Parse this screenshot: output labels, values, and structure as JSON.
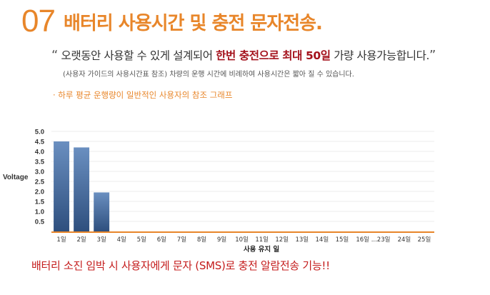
{
  "header": {
    "number": "07",
    "title": "배터리 사용시간 및 충전 문자전송."
  },
  "quote": {
    "open_mark": "“",
    "part1": "오랫동안 사용할 수 있게 설계되어",
    "highlight1": "한번 충전으로 최대 50일",
    "part2": "가량 사용가능합니다.",
    "close_mark": "”"
  },
  "subnote": "(사용자 가이드의 사용시간표 참조) 차량의 운행 시간에 비례하여 사용시간은 짧아 질 수 있습니다.",
  "graph_note": "· 하루 평균 운행량이 일반적인 사용자의 참조 그래프",
  "chart_data": {
    "type": "bar",
    "categories": [
      "1일",
      "2일",
      "3일",
      "4일",
      "5일",
      "6일",
      "7일",
      "8일",
      "9일",
      "10일",
      "11일",
      "12일",
      "13일",
      "14일",
      "15일",
      "16일 ...23일",
      "24일",
      "25일"
    ],
    "values": [
      4.5,
      4.2,
      1.95,
      0,
      0,
      0,
      0,
      0,
      0,
      0,
      0,
      0,
      0,
      0,
      0,
      0,
      0,
      0
    ],
    "yticks": [
      "5.0",
      "4.5",
      "4.0",
      "3.5",
      "3.0",
      "2.5",
      "2.0",
      "1.5",
      "1.0",
      "0.5"
    ],
    "ylim": [
      0,
      5.0
    ],
    "ylabel": "Voltage",
    "xlabel": "사용 유지 일",
    "grid": true,
    "colors": {
      "bar_top": "#6a8fc0",
      "bar_bottom": "#2e4f7e",
      "axis": "#e8862a",
      "grid": "#ececec"
    }
  },
  "bottom_note": "배터리 소진 임박 시 사용자에게 문자 (SMS)로 충전 알람전송 기능!!"
}
